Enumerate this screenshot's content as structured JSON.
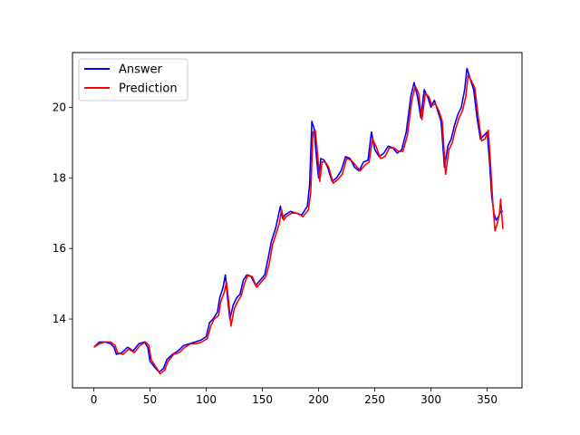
{
  "chart_data": {
    "type": "line",
    "title": "",
    "xlabel": "",
    "ylabel": "",
    "xlim": [
      -19,
      381
    ],
    "ylim": [
      12.05,
      21.55
    ],
    "xticks": [
      0,
      50,
      100,
      150,
      200,
      250,
      300,
      350
    ],
    "yticks": [
      14,
      16,
      18,
      20
    ],
    "grid": false,
    "legend": {
      "position": "upper-left"
    },
    "series": [
      {
        "name": "Answer",
        "color": "#0000ff",
        "points": [
          [
            0,
            13.2
          ],
          [
            5,
            13.35
          ],
          [
            10,
            13.35
          ],
          [
            15,
            13.3
          ],
          [
            18,
            13.2
          ],
          [
            20,
            13.0
          ],
          [
            25,
            13.05
          ],
          [
            30,
            13.2
          ],
          [
            35,
            13.1
          ],
          [
            40,
            13.3
          ],
          [
            45,
            13.35
          ],
          [
            48,
            13.2
          ],
          [
            50,
            12.8
          ],
          [
            55,
            12.6
          ],
          [
            58,
            12.5
          ],
          [
            62,
            12.6
          ],
          [
            65,
            12.85
          ],
          [
            70,
            13.0
          ],
          [
            75,
            13.1
          ],
          [
            80,
            13.25
          ],
          [
            85,
            13.3
          ],
          [
            90,
            13.35
          ],
          [
            95,
            13.4
          ],
          [
            100,
            13.5
          ],
          [
            103,
            13.9
          ],
          [
            106,
            14.0
          ],
          [
            110,
            14.2
          ],
          [
            112,
            14.6
          ],
          [
            115,
            14.9
          ],
          [
            117,
            15.25
          ],
          [
            119,
            14.6
          ],
          [
            121,
            14.0
          ],
          [
            124,
            14.4
          ],
          [
            127,
            14.6
          ],
          [
            130,
            14.7
          ],
          [
            133,
            15.1
          ],
          [
            136,
            15.25
          ],
          [
            140,
            15.2
          ],
          [
            144,
            14.95
          ],
          [
            148,
            15.1
          ],
          [
            152,
            15.25
          ],
          [
            155,
            15.7
          ],
          [
            158,
            16.2
          ],
          [
            162,
            16.6
          ],
          [
            164,
            16.9
          ],
          [
            166,
            17.2
          ],
          [
            168,
            16.85
          ],
          [
            170,
            16.95
          ],
          [
            175,
            17.05
          ],
          [
            180,
            17.0
          ],
          [
            185,
            16.95
          ],
          [
            190,
            17.2
          ],
          [
            192,
            17.8
          ],
          [
            194,
            19.6
          ],
          [
            196,
            19.4
          ],
          [
            198,
            18.6
          ],
          [
            200,
            18.0
          ],
          [
            202,
            18.55
          ],
          [
            205,
            18.5
          ],
          [
            208,
            18.3
          ],
          [
            212,
            17.9
          ],
          [
            216,
            18.0
          ],
          [
            220,
            18.2
          ],
          [
            224,
            18.6
          ],
          [
            228,
            18.55
          ],
          [
            232,
            18.3
          ],
          [
            236,
            18.2
          ],
          [
            240,
            18.45
          ],
          [
            244,
            18.5
          ],
          [
            247,
            19.3
          ],
          [
            250,
            18.8
          ],
          [
            254,
            18.6
          ],
          [
            258,
            18.7
          ],
          [
            262,
            18.9
          ],
          [
            266,
            18.85
          ],
          [
            270,
            18.7
          ],
          [
            274,
            18.8
          ],
          [
            278,
            19.3
          ],
          [
            282,
            20.3
          ],
          [
            285,
            20.7
          ],
          [
            288,
            20.3
          ],
          [
            291,
            19.7
          ],
          [
            294,
            20.5
          ],
          [
            297,
            20.3
          ],
          [
            300,
            20.0
          ],
          [
            303,
            20.2
          ],
          [
            306,
            19.9
          ],
          [
            309,
            19.6
          ],
          [
            312,
            18.3
          ],
          [
            315,
            18.9
          ],
          [
            318,
            19.1
          ],
          [
            321,
            19.5
          ],
          [
            324,
            19.8
          ],
          [
            327,
            20.0
          ],
          [
            330,
            20.5
          ],
          [
            332,
            21.1
          ],
          [
            335,
            20.8
          ],
          [
            338,
            20.5
          ],
          [
            341,
            19.7
          ],
          [
            344,
            19.1
          ],
          [
            347,
            19.2
          ],
          [
            350,
            19.3
          ],
          [
            352,
            18.5
          ],
          [
            354,
            17.5
          ],
          [
            356,
            17.0
          ],
          [
            358,
            16.8
          ],
          [
            360,
            16.9
          ],
          [
            362,
            17.05
          ],
          [
            364,
            17.05
          ]
        ]
      },
      {
        "name": "Prediction",
        "color": "#ff0000",
        "points": [
          [
            0,
            13.2
          ],
          [
            5,
            13.3
          ],
          [
            10,
            13.35
          ],
          [
            15,
            13.35
          ],
          [
            19,
            13.25
          ],
          [
            21,
            13.05
          ],
          [
            26,
            13.0
          ],
          [
            31,
            13.15
          ],
          [
            36,
            13.05
          ],
          [
            41,
            13.25
          ],
          [
            46,
            13.35
          ],
          [
            49,
            13.25
          ],
          [
            51,
            12.85
          ],
          [
            56,
            12.6
          ],
          [
            59,
            12.45
          ],
          [
            63,
            12.55
          ],
          [
            66,
            12.8
          ],
          [
            71,
            13.0
          ],
          [
            76,
            13.05
          ],
          [
            81,
            13.2
          ],
          [
            86,
            13.3
          ],
          [
            91,
            13.3
          ],
          [
            96,
            13.35
          ],
          [
            101,
            13.45
          ],
          [
            104,
            13.8
          ],
          [
            107,
            14.0
          ],
          [
            111,
            14.1
          ],
          [
            113,
            14.5
          ],
          [
            116,
            14.75
          ],
          [
            118,
            15.05
          ],
          [
            120,
            14.5
          ],
          [
            122,
            13.8
          ],
          [
            125,
            14.3
          ],
          [
            128,
            14.5
          ],
          [
            131,
            14.65
          ],
          [
            134,
            15.0
          ],
          [
            137,
            15.25
          ],
          [
            141,
            15.2
          ],
          [
            145,
            14.9
          ],
          [
            149,
            15.05
          ],
          [
            153,
            15.2
          ],
          [
            156,
            15.55
          ],
          [
            159,
            16.1
          ],
          [
            163,
            16.5
          ],
          [
            165,
            16.7
          ],
          [
            167,
            17.1
          ],
          [
            169,
            16.8
          ],
          [
            171,
            16.9
          ],
          [
            176,
            17.0
          ],
          [
            181,
            17.0
          ],
          [
            186,
            16.9
          ],
          [
            191,
            17.1
          ],
          [
            193,
            17.6
          ],
          [
            195,
            19.3
          ],
          [
            197,
            19.35
          ],
          [
            199,
            18.7
          ],
          [
            201,
            17.9
          ],
          [
            203,
            18.45
          ],
          [
            206,
            18.45
          ],
          [
            209,
            18.3
          ],
          [
            213,
            17.85
          ],
          [
            217,
            17.95
          ],
          [
            221,
            18.1
          ],
          [
            225,
            18.55
          ],
          [
            229,
            18.5
          ],
          [
            233,
            18.35
          ],
          [
            237,
            18.2
          ],
          [
            241,
            18.35
          ],
          [
            245,
            18.45
          ],
          [
            248,
            19.1
          ],
          [
            251,
            18.9
          ],
          [
            255,
            18.55
          ],
          [
            259,
            18.6
          ],
          [
            263,
            18.85
          ],
          [
            267,
            18.85
          ],
          [
            271,
            18.75
          ],
          [
            275,
            18.75
          ],
          [
            279,
            19.2
          ],
          [
            283,
            20.2
          ],
          [
            286,
            20.6
          ],
          [
            289,
            20.4
          ],
          [
            292,
            19.65
          ],
          [
            295,
            20.4
          ],
          [
            298,
            20.3
          ],
          [
            301,
            20.05
          ],
          [
            304,
            20.1
          ],
          [
            307,
            19.9
          ],
          [
            310,
            19.6
          ],
          [
            313,
            18.1
          ],
          [
            316,
            18.8
          ],
          [
            319,
            19.0
          ],
          [
            322,
            19.4
          ],
          [
            325,
            19.7
          ],
          [
            328,
            19.9
          ],
          [
            331,
            20.3
          ],
          [
            333,
            20.9
          ],
          [
            336,
            20.75
          ],
          [
            339,
            20.55
          ],
          [
            342,
            19.75
          ],
          [
            345,
            19.05
          ],
          [
            348,
            19.1
          ],
          [
            351,
            19.35
          ],
          [
            353,
            18.4
          ],
          [
            355,
            17.3
          ],
          [
            357,
            16.5
          ],
          [
            359,
            16.7
          ],
          [
            361,
            17.0
          ],
          [
            362,
            17.4
          ],
          [
            364,
            16.55
          ]
        ]
      }
    ]
  }
}
